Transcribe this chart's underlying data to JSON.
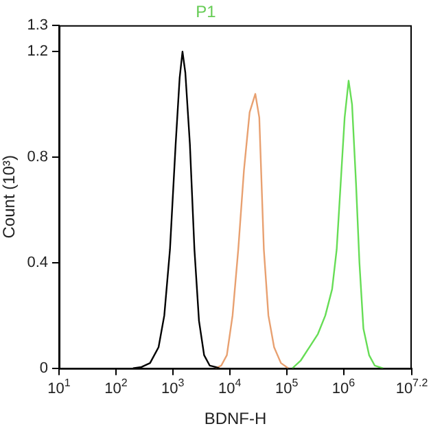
{
  "chart_data": {
    "type": "line",
    "title": "P1",
    "xlabel": "BDNF-H",
    "ylabel": "Count (10³)",
    "log": "x",
    "grid": false,
    "legend": false,
    "marker": "none",
    "xlim": [
      10,
      15848932
    ],
    "xticks": [
      {
        "value": 10,
        "label": "10$^{1}$"
      },
      {
        "value": 100,
        "label": "10$^{2}$"
      },
      {
        "value": 1000,
        "label": "10$^{3}$"
      },
      {
        "value": 10000,
        "label": "10$^{4}$"
      },
      {
        "value": 100000,
        "label": "10$^{5}$"
      },
      {
        "value": 1000000,
        "label": "10$^{6}$"
      },
      {
        "value": 15848932,
        "label": "10$^{7.2}$"
      }
    ],
    "ylim": [
      0,
      1.3
    ],
    "yticks": [
      0,
      0.4,
      0.8,
      1.2,
      1.3
    ],
    "series": [
      {
        "color": "#000000",
        "x": [
          200,
          282,
          398,
          562,
          708,
          891,
          1122,
          1318,
          1479,
          1660,
          1995,
          2399,
          2884,
          3548,
          4467,
          5623,
          6607
        ],
        "values": [
          0,
          0.005,
          0.02,
          0.08,
          0.2,
          0.45,
          0.85,
          1.1,
          1.2,
          1.12,
          0.85,
          0.45,
          0.18,
          0.05,
          0.01,
          0.005,
          0
        ]
      },
      {
        "color": "#e8a070",
        "x": [
          5623,
          7079,
          8913,
          11220,
          14130,
          17780,
          22390,
          28180,
          33110,
          39810,
          47860,
          60260,
          79430,
          107200
        ],
        "values": [
          0,
          0.01,
          0.05,
          0.2,
          0.45,
          0.75,
          0.97,
          1.04,
          0.95,
          0.45,
          0.2,
          0.08,
          0.02,
          0
        ]
      },
      {
        "color": "#66dd55",
        "x": [
          125900,
          177800,
          251200,
          354800,
          478600,
          631000,
          758600,
          891300,
          1047000,
          1230000,
          1413000,
          1660000,
          1905000,
          2239000,
          2818000,
          3548000,
          5012000
        ],
        "values": [
          0,
          0.03,
          0.08,
          0.13,
          0.2,
          0.3,
          0.45,
          0.7,
          0.95,
          1.09,
          1,
          0.7,
          0.4,
          0.15,
          0.05,
          0.01,
          0
        ]
      }
    ]
  }
}
